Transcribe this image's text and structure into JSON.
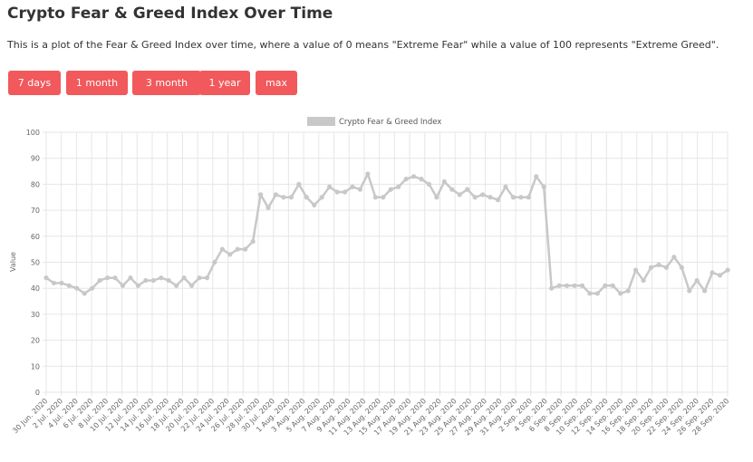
{
  "page": {
    "title": "Crypto Fear & Greed Index Over Time",
    "description": "This is a plot of the Fear & Greed Index over time, where a value of 0 means \"Extreme Fear\" while a value of 100 represents \"Extreme Greed\"."
  },
  "buttons": [
    {
      "label": "7 days"
    },
    {
      "label": "1 month"
    },
    {
      "label": "3 month"
    },
    {
      "label": "1 year"
    },
    {
      "label": "max"
    }
  ],
  "colors": {
    "button_bg": "#f1595c",
    "line": "#c8c8c8",
    "grid": "#e6e6e6"
  },
  "chart_data": {
    "type": "line",
    "ylabel": "Value",
    "ylim": [
      0,
      100
    ],
    "yticks": [
      0,
      10,
      20,
      30,
      40,
      50,
      60,
      70,
      80,
      90,
      100
    ],
    "grid": true,
    "legend_position": "top-center",
    "x_tick_labels": [
      "30 Jun. 2020",
      "2 Jul. 2020",
      "4 Jul. 2020",
      "6 Jul. 2020",
      "8 Jul. 2020",
      "10 Jul. 2020",
      "12 Jul. 2020",
      "14 Jul. 2020",
      "16 Jul. 2020",
      "18 Jul. 2020",
      "20 Jul. 2020",
      "22 Jul. 2020",
      "24 Jul. 2020",
      "26 Jul. 2020",
      "28 Jul. 2020",
      "30 Jul. 2020",
      "1 Aug. 2020",
      "3 Aug. 2020",
      "5 Aug. 2020",
      "7 Aug. 2020",
      "9 Aug. 2020",
      "11 Aug. 2020",
      "13 Aug. 2020",
      "15 Aug. 2020",
      "17 Aug. 2020",
      "19 Aug. 2020",
      "21 Aug. 2020",
      "23 Aug. 2020",
      "25 Aug. 2020",
      "27 Aug. 2020",
      "29 Aug. 2020",
      "31 Aug. 2020",
      "2 Sep. 2020",
      "4 Sep. 2020",
      "6 Sep. 2020",
      "8 Sep. 2020",
      "10 Sep. 2020",
      "12 Sep. 2020",
      "14 Sep. 2020",
      "16 Sep. 2020",
      "18 Sep. 2020",
      "20 Sep. 2020",
      "22 Sep. 2020",
      "24 Sep. 2020",
      "26 Sep. 2020",
      "28 Sep. 2020"
    ],
    "series": [
      {
        "name": "Crypto Fear & Greed Index",
        "values": [
          44,
          42,
          42,
          41,
          40,
          38,
          40,
          43,
          44,
          44,
          41,
          44,
          41,
          43,
          43,
          44,
          43,
          41,
          44,
          41,
          44,
          44,
          50,
          55,
          53,
          55,
          55,
          58,
          76,
          71,
          76,
          75,
          75,
          80,
          75,
          72,
          75,
          79,
          77,
          77,
          79,
          78,
          84,
          75,
          75,
          78,
          79,
          82,
          83,
          82,
          80,
          75,
          81,
          78,
          76,
          78,
          75,
          76,
          75,
          74,
          79,
          75,
          75,
          75,
          83,
          79,
          40,
          41,
          41,
          41,
          41,
          38,
          38,
          41,
          41,
          38,
          39,
          47,
          43,
          48,
          49,
          48,
          52,
          48,
          39,
          43,
          39,
          46,
          45,
          47
        ]
      }
    ]
  }
}
